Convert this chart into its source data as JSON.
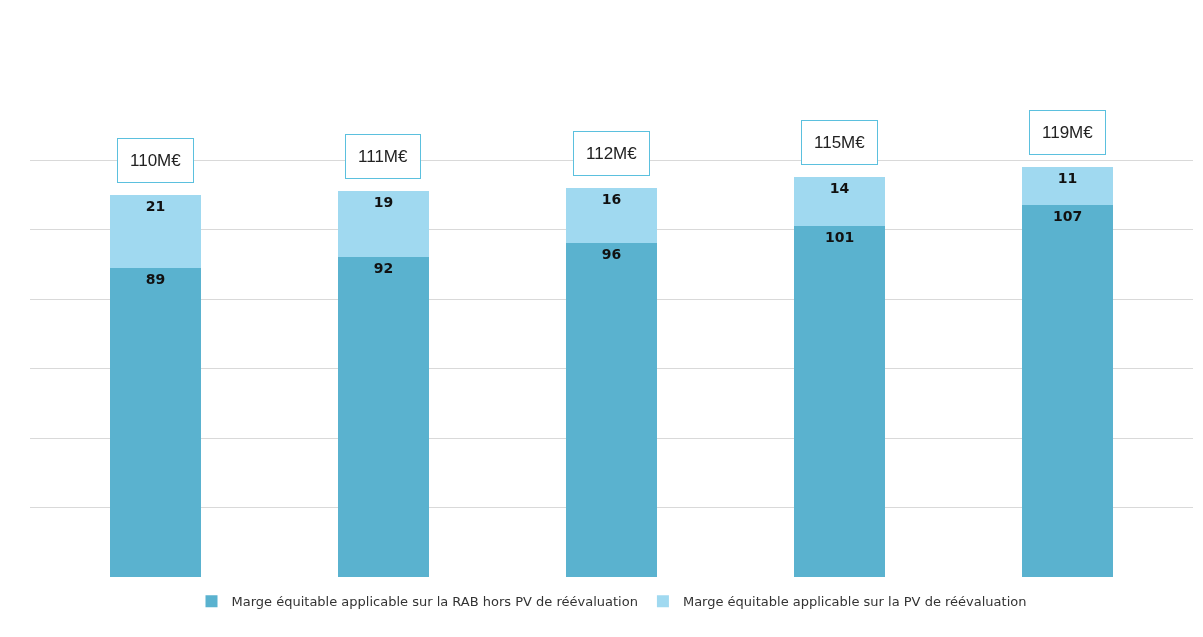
{
  "chart_data": {
    "type": "bar",
    "stacked": true,
    "categories": [
      null,
      null,
      null,
      null,
      null
    ],
    "series": [
      {
        "name": "Marge équitable applicable sur la RAB hors PV de réévaluation",
        "color": "#5ab2cf",
        "values": [
          89,
          92,
          96,
          101,
          107
        ]
      },
      {
        "name": "Marge équitable applicable sur la PV de réévaluation",
        "color": "#a0d9f0",
        "values": [
          21,
          19,
          16,
          14,
          11
        ]
      }
    ],
    "totals": [
      "110M€",
      "111M€",
      "112M€",
      "115M€",
      "119M€"
    ],
    "data_labels": true,
    "grid": "y",
    "legend": "bottom"
  }
}
